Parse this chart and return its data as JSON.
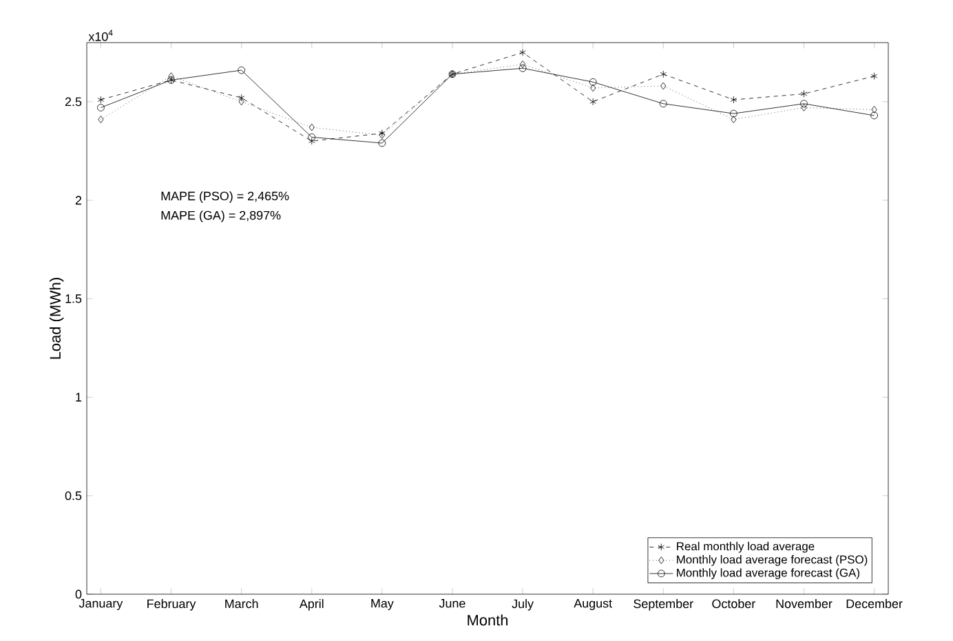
{
  "chart_data": {
    "type": "line",
    "xlabel": "Month",
    "ylabel": "Load (MWh)",
    "categories": [
      "January",
      "February",
      "March",
      "April",
      "May",
      "June",
      "July",
      "August",
      "September",
      "October",
      "November",
      "December"
    ],
    "series": [
      {
        "name": "Real monthly load average",
        "color": "#000000",
        "marker": "cross",
        "line_style": "dashed",
        "values": [
          2.51,
          2.61,
          2.52,
          2.3,
          2.34,
          2.64,
          2.75,
          2.5,
          2.64,
          2.51,
          2.54,
          2.63
        ]
      },
      {
        "name": "Monthly load average forecast (PSO)",
        "color": "#000000",
        "marker": "diamond",
        "line_style": "dotted",
        "values": [
          2.41,
          2.63,
          2.5,
          2.37,
          2.33,
          2.64,
          2.69,
          2.57,
          2.58,
          2.41,
          2.47,
          2.46
        ]
      },
      {
        "name": "Monthly load average forecast (GA)",
        "color": "#000000",
        "marker": "circle",
        "line_style": "solid",
        "values": [
          2.47,
          2.61,
          2.66,
          2.32,
          2.29,
          2.64,
          2.67,
          2.6,
          2.49,
          2.44,
          2.49,
          2.43
        ]
      }
    ],
    "ylim": [
      0,
      2.8
    ],
    "yticks": [
      0,
      0.5,
      1,
      1.5,
      2,
      2.5
    ],
    "annotations": [
      "x10$^{4}$",
      "MAPE (PSO) = 2,465%",
      "MAPE (GA) = 2,897%"
    ],
    "legend": "bottom right",
    "grid": false
  }
}
